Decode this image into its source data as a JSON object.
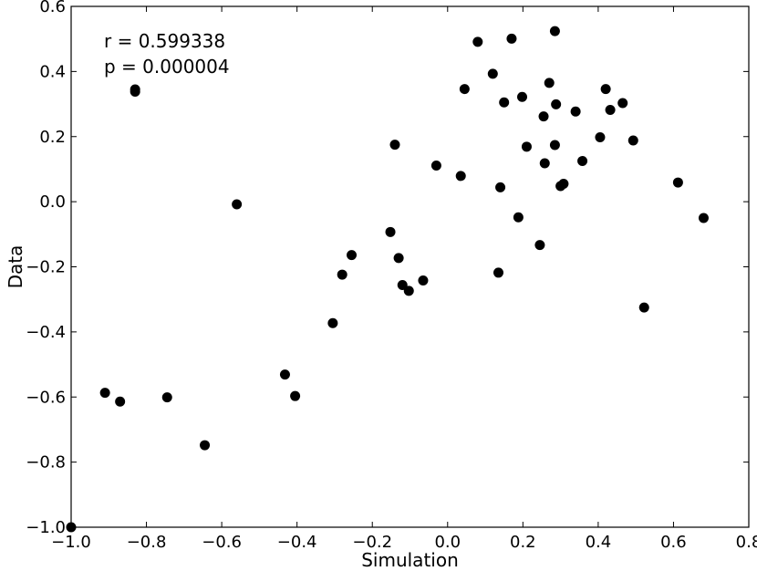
{
  "chart_data": {
    "type": "scatter",
    "title": "",
    "xlabel": "Simulation",
    "ylabel": "Data",
    "xlim": [
      -1.0,
      0.8
    ],
    "ylim": [
      -1.0,
      0.6
    ],
    "xticks": [
      -1.0,
      -0.8,
      -0.6,
      -0.4,
      -0.2,
      0.0,
      0.2,
      0.4,
      0.6,
      0.8
    ],
    "xtick_labels": [
      "−1.0",
      "−0.8",
      "−0.6",
      "−0.4",
      "−0.2",
      "0.0",
      "0.2",
      "0.4",
      "0.6",
      "0.8"
    ],
    "yticks": [
      -1.0,
      -0.8,
      -0.6,
      -0.4,
      -0.2,
      0.0,
      0.2,
      0.4,
      0.6
    ],
    "ytick_labels": [
      "−1.0",
      "−0.8",
      "−0.6",
      "−0.4",
      "−0.2",
      "0.0",
      "0.2",
      "0.4",
      "0.6"
    ],
    "grid": false,
    "marker_color": "#000000",
    "annotations": [
      "r = 0.599338",
      "p = 0.000004"
    ],
    "points": [
      {
        "x": -1.0,
        "y": -1.0
      },
      {
        "x": -0.91,
        "y": -0.587
      },
      {
        "x": -0.87,
        "y": -0.614
      },
      {
        "x": -0.83,
        "y": 0.345
      },
      {
        "x": -0.83,
        "y": 0.338
      },
      {
        "x": -0.745,
        "y": -0.601
      },
      {
        "x": -0.645,
        "y": -0.748
      },
      {
        "x": -0.56,
        "y": -0.008
      },
      {
        "x": -0.432,
        "y": -0.531
      },
      {
        "x": -0.405,
        "y": -0.597
      },
      {
        "x": -0.305,
        "y": -0.373
      },
      {
        "x": -0.28,
        "y": -0.224
      },
      {
        "x": -0.255,
        "y": -0.164
      },
      {
        "x": -0.152,
        "y": -0.093
      },
      {
        "x": -0.14,
        "y": 0.175
      },
      {
        "x": -0.13,
        "y": -0.173
      },
      {
        "x": -0.12,
        "y": -0.256
      },
      {
        "x": -0.103,
        "y": -0.274
      },
      {
        "x": -0.065,
        "y": -0.242
      },
      {
        "x": -0.03,
        "y": 0.111
      },
      {
        "x": 0.035,
        "y": 0.079
      },
      {
        "x": 0.045,
        "y": 0.346
      },
      {
        "x": 0.08,
        "y": 0.491
      },
      {
        "x": 0.12,
        "y": 0.393
      },
      {
        "x": 0.135,
        "y": -0.218
      },
      {
        "x": 0.14,
        "y": 0.044
      },
      {
        "x": 0.15,
        "y": 0.305
      },
      {
        "x": 0.17,
        "y": 0.501
      },
      {
        "x": 0.188,
        "y": -0.048
      },
      {
        "x": 0.198,
        "y": 0.322
      },
      {
        "x": 0.21,
        "y": 0.169
      },
      {
        "x": 0.245,
        "y": -0.133
      },
      {
        "x": 0.255,
        "y": 0.262
      },
      {
        "x": 0.258,
        "y": 0.118
      },
      {
        "x": 0.27,
        "y": 0.365
      },
      {
        "x": 0.285,
        "y": 0.524
      },
      {
        "x": 0.285,
        "y": 0.174
      },
      {
        "x": 0.288,
        "y": 0.299
      },
      {
        "x": 0.3,
        "y": 0.048
      },
      {
        "x": 0.308,
        "y": 0.055
      },
      {
        "x": 0.34,
        "y": 0.277
      },
      {
        "x": 0.358,
        "y": 0.125
      },
      {
        "x": 0.405,
        "y": 0.198
      },
      {
        "x": 0.42,
        "y": 0.346
      },
      {
        "x": 0.432,
        "y": 0.282
      },
      {
        "x": 0.465,
        "y": 0.303
      },
      {
        "x": 0.493,
        "y": 0.188
      },
      {
        "x": 0.522,
        "y": -0.325
      },
      {
        "x": 0.612,
        "y": 0.059
      },
      {
        "x": 0.68,
        "y": -0.05
      }
    ]
  }
}
